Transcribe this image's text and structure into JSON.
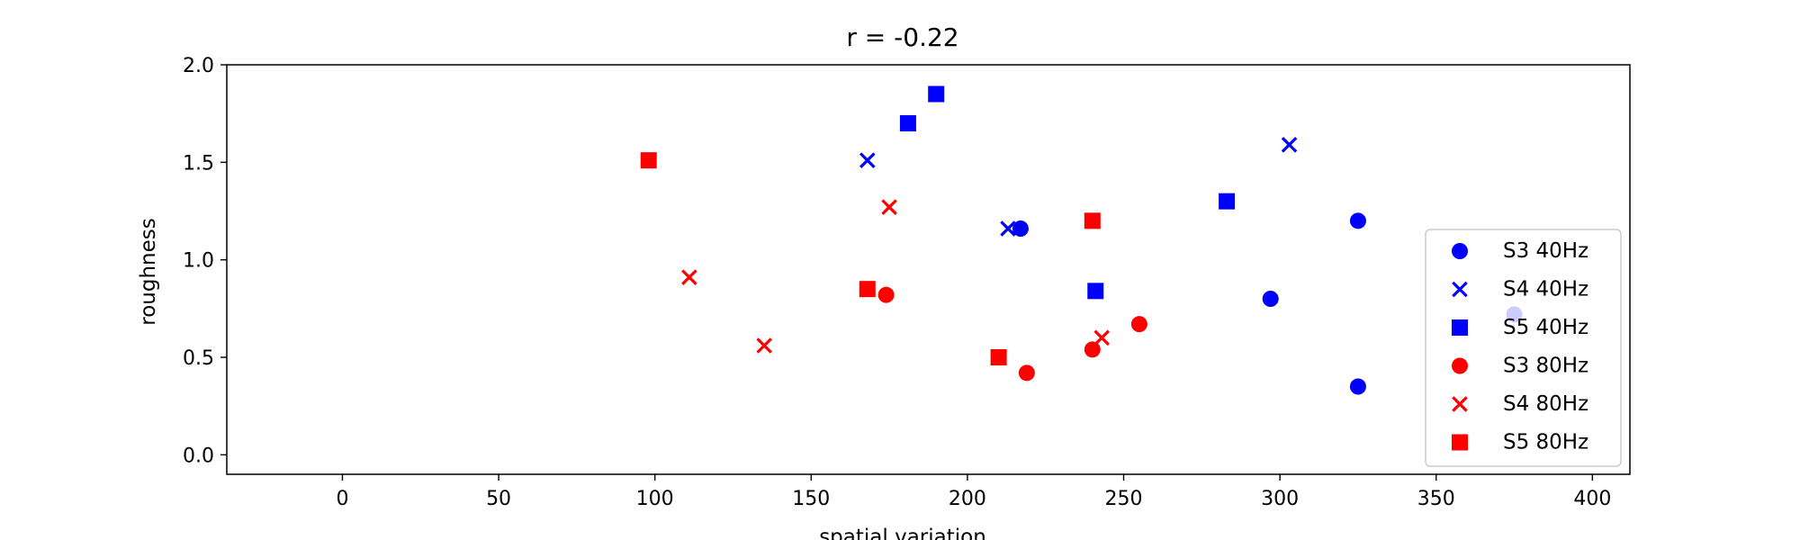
{
  "chart_data": {
    "type": "scatter",
    "title": "r = -0.22",
    "xlabel": "spatial variation",
    "ylabel": "roughness",
    "xlim": [
      -37,
      412
    ],
    "ylim": [
      -0.1,
      2.0
    ],
    "xticks": [
      0,
      50,
      100,
      150,
      200,
      250,
      300,
      350,
      400
    ],
    "yticks": [
      0.0,
      0.5,
      1.0,
      1.5,
      2.0
    ],
    "xtick_labels": [
      "0",
      "50",
      "100",
      "150",
      "200",
      "250",
      "300",
      "350",
      "400"
    ],
    "ytick_labels": [
      "0.0",
      "0.5",
      "1.0",
      "1.5",
      "2.0"
    ],
    "grid": false,
    "legend_position": "lower-right",
    "series": [
      {
        "name": "S3 40Hz",
        "color": "#0000ff",
        "marker": "circle",
        "points": [
          [
            217,
            1.16
          ],
          [
            325,
            1.2
          ],
          [
            297,
            0.8
          ],
          [
            325,
            0.35
          ],
          [
            375,
            0.72
          ]
        ]
      },
      {
        "name": "S4 40Hz",
        "color": "#0000ff",
        "marker": "x",
        "points": [
          [
            168,
            1.51
          ],
          [
            213,
            1.16
          ],
          [
            303,
            1.59
          ]
        ]
      },
      {
        "name": "S5 40Hz",
        "color": "#0000ff",
        "marker": "square",
        "points": [
          [
            190,
            1.85
          ],
          [
            181,
            1.7
          ],
          [
            283,
            1.3
          ],
          [
            241,
            0.84
          ]
        ]
      },
      {
        "name": "S3 80Hz",
        "color": "#ff0000",
        "marker": "circle",
        "points": [
          [
            174,
            0.82
          ],
          [
            255,
            0.67
          ],
          [
            240,
            0.54
          ],
          [
            219,
            0.42
          ]
        ]
      },
      {
        "name": "S4 80Hz",
        "color": "#ff0000",
        "marker": "x",
        "points": [
          [
            111,
            0.91
          ],
          [
            175,
            1.27
          ],
          [
            135,
            0.56
          ],
          [
            243,
            0.6
          ]
        ]
      },
      {
        "name": "S5 80Hz",
        "color": "#ff0000",
        "marker": "square",
        "points": [
          [
            98,
            1.51
          ],
          [
            240,
            1.2
          ],
          [
            168,
            0.85
          ],
          [
            210,
            0.5
          ]
        ]
      }
    ]
  }
}
